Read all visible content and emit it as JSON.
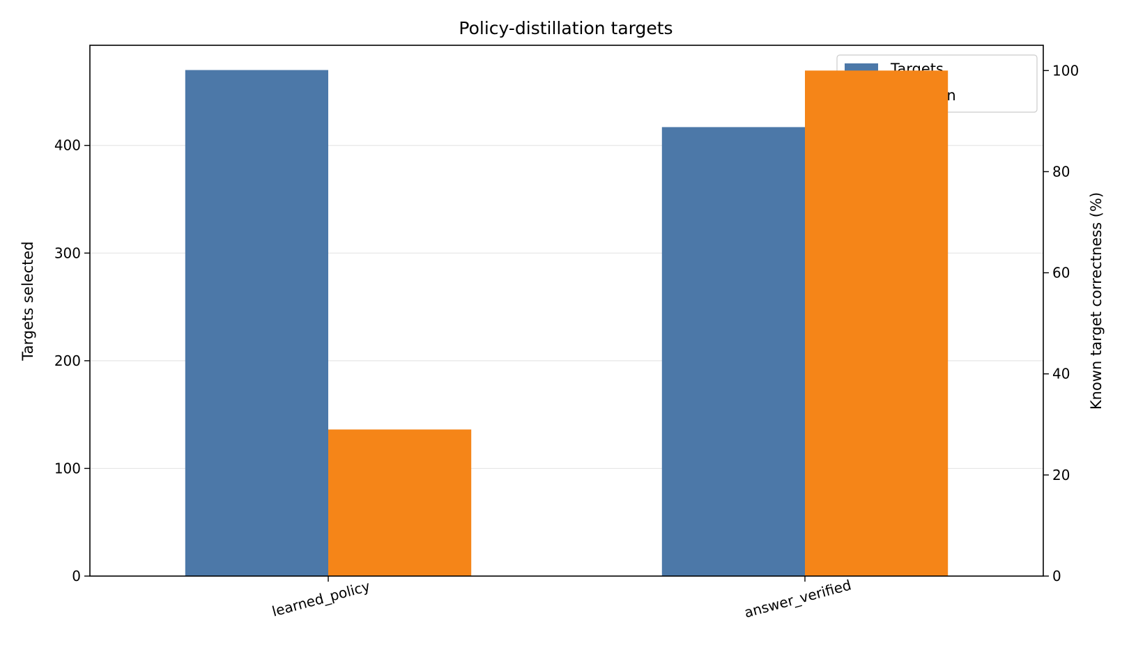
{
  "chart_data": {
    "type": "bar",
    "title": "Policy-distillation targets",
    "categories": [
      "learned_policy",
      "answer_verified"
    ],
    "series": [
      {
        "name": "Targets",
        "axis": "left",
        "color": "#4c78a8",
        "values": [
          470,
          417
        ]
      },
      {
        "name": "Precision",
        "axis": "right",
        "color": "#f58518",
        "values": [
          29,
          100
        ]
      }
    ],
    "ylabel": "Targets selected",
    "ylabel_right": "Known target correctness (%)",
    "ylim": [
      0,
      493
    ],
    "ylim_right": [
      0,
      105
    ],
    "yticks": [
      "0",
      "100",
      "200",
      "300",
      "400"
    ],
    "yticks_right": [
      "0",
      "20",
      "40",
      "60",
      "80",
      "100"
    ],
    "grid": "horizontal",
    "legend": "top-right"
  }
}
